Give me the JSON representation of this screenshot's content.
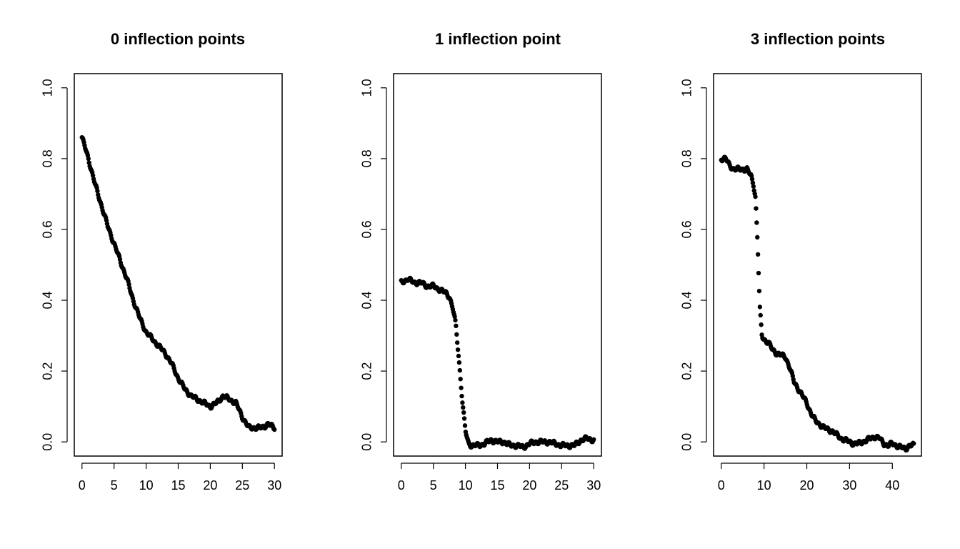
{
  "chart_data": [
    {
      "type": "scatter",
      "title": "0 inflection points",
      "xlabel": "",
      "ylabel": "",
      "xlim": [
        -1.2,
        31.2
      ],
      "ylim": [
        -0.04,
        1.04
      ],
      "x_ticks": [
        0,
        5,
        10,
        15,
        20,
        25,
        30
      ],
      "y_ticks": [
        0.0,
        0.2,
        0.4,
        0.6,
        0.8,
        1.0
      ],
      "y_tick_labels": [
        "0.0",
        "0.2",
        "0.4",
        "0.6",
        "0.8",
        "1.0"
      ],
      "grid": false,
      "x_range": [
        0,
        30
      ],
      "n_points": 300,
      "anchor_x": [
        0,
        1,
        2,
        3,
        4,
        5,
        6,
        7,
        8,
        9,
        10,
        11,
        12,
        13,
        14,
        15,
        16,
        17,
        18,
        19,
        20,
        21,
        22,
        23,
        24,
        25,
        26,
        27,
        28,
        29,
        30
      ],
      "anchor_y": [
        0.86,
        0.8,
        0.73,
        0.67,
        0.61,
        0.56,
        0.51,
        0.46,
        0.4,
        0.35,
        0.31,
        0.29,
        0.27,
        0.25,
        0.22,
        0.18,
        0.15,
        0.13,
        0.12,
        0.11,
        0.1,
        0.11,
        0.13,
        0.12,
        0.11,
        0.07,
        0.04,
        0.04,
        0.04,
        0.05,
        0.04
      ]
    },
    {
      "type": "scatter",
      "title": "1 inflection point",
      "xlabel": "",
      "ylabel": "",
      "xlim": [
        -1.2,
        31.2
      ],
      "ylim": [
        -0.04,
        1.04
      ],
      "x_ticks": [
        0,
        5,
        10,
        15,
        20,
        25,
        30
      ],
      "y_ticks": [
        0.0,
        0.2,
        0.4,
        0.6,
        0.8,
        1.0
      ],
      "y_tick_labels": [
        "0.0",
        "0.2",
        "0.4",
        "0.6",
        "0.8",
        "1.0"
      ],
      "grid": false,
      "x_range": [
        0,
        30
      ],
      "n_points": 300,
      "anchor_x": [
        0,
        1,
        2,
        3,
        4,
        5,
        6,
        7,
        7.5,
        8,
        8.5,
        9,
        9.5,
        10,
        10.5,
        11,
        12,
        13,
        14,
        15,
        16,
        17,
        18,
        19,
        20,
        21,
        22,
        23,
        24,
        25,
        26,
        27,
        28,
        29,
        30
      ],
      "anchor_y": [
        0.45,
        0.46,
        0.45,
        0.45,
        0.44,
        0.44,
        0.43,
        0.42,
        0.41,
        0.38,
        0.33,
        0.23,
        0.12,
        0.03,
        -0.005,
        -0.01,
        -0.01,
        -0.005,
        0.005,
        0.0,
        0.0,
        -0.01,
        -0.01,
        -0.015,
        -0.005,
        0.0,
        0.0,
        0.0,
        -0.005,
        -0.01,
        -0.01,
        -0.01,
        0.005,
        0.01,
        0.005
      ]
    },
    {
      "type": "scatter",
      "title": "3 inflection points",
      "xlabel": "",
      "ylabel": "",
      "xlim": [
        -1.8,
        46.8
      ],
      "ylim": [
        -0.04,
        1.04
      ],
      "x_ticks": [
        0,
        10,
        20,
        30,
        40
      ],
      "y_ticks": [
        0.0,
        0.2,
        0.4,
        0.6,
        0.8,
        1.0
      ],
      "y_tick_labels": [
        "0.0",
        "0.2",
        "0.4",
        "0.6",
        "0.8",
        "1.0"
      ],
      "grid": false,
      "x_range": [
        0,
        45
      ],
      "n_points": 300,
      "anchor_x": [
        0,
        1,
        2,
        3,
        4,
        5,
        6,
        7,
        7.5,
        8,
        8.5,
        9,
        9.5,
        10,
        11,
        12,
        13,
        14,
        15,
        16,
        17,
        18,
        19,
        20,
        21,
        22,
        23,
        24,
        25,
        26,
        27,
        28,
        29,
        30,
        31,
        32,
        33,
        34,
        35,
        36,
        37,
        38,
        39,
        40,
        41,
        42,
        43,
        44,
        45
      ],
      "anchor_y": [
        0.8,
        0.8,
        0.78,
        0.77,
        0.77,
        0.77,
        0.77,
        0.75,
        0.73,
        0.69,
        0.56,
        0.38,
        0.3,
        0.29,
        0.28,
        0.26,
        0.25,
        0.245,
        0.24,
        0.21,
        0.17,
        0.15,
        0.13,
        0.11,
        0.08,
        0.06,
        0.05,
        0.04,
        0.035,
        0.03,
        0.02,
        0.01,
        0.005,
        0.0,
        -0.005,
        -0.005,
        0.0,
        0.005,
        0.01,
        0.015,
        0.01,
        -0.005,
        -0.01,
        -0.005,
        -0.01,
        -0.015,
        -0.02,
        -0.01,
        -0.01
      ]
    }
  ]
}
